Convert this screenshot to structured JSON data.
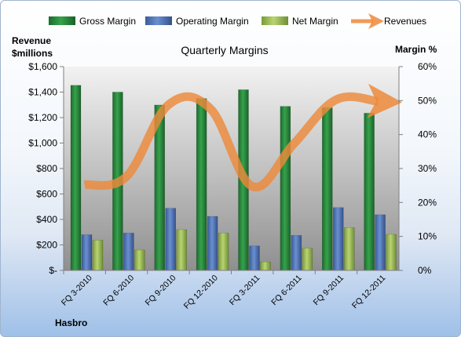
{
  "chart_data": {
    "type": "bar",
    "title": "Quarterly Margins",
    "ylabel_left": "Revenue $millions",
    "ylabel_left_lines": [
      "Revenue",
      "$millions"
    ],
    "ylabel_right": "Margin %",
    "footer": "Hasbro",
    "categories": [
      "FQ 3-2010",
      "FQ 6-2010",
      "FQ 9-2010",
      "FQ 12-2010",
      "FQ 3-2011",
      "FQ 6-2011",
      "FQ 9-2011",
      "FQ 12-2011"
    ],
    "y_left": {
      "min": 0,
      "max": 1600,
      "step": 200,
      "ticks": [
        "$-",
        "$200",
        "$400",
        "$600",
        "$800",
        "$1,000",
        "$1,200",
        "$1,400",
        "$1,600"
      ]
    },
    "y_right": {
      "min": 0,
      "max": 60,
      "step": 10,
      "ticks": [
        "0%",
        "10%",
        "20%",
        "30%",
        "40%",
        "50%",
        "60%"
      ]
    },
    "series": [
      {
        "name": "Gross Margin",
        "kind": "bar",
        "axis": "right",
        "color": "#2a8a3e",
        "values": [
          54.5,
          52.5,
          48.7,
          50.6,
          53.2,
          48.3,
          47.9,
          46.3
        ]
      },
      {
        "name": "Operating Margin",
        "kind": "bar",
        "axis": "right",
        "color": "#4a6fb0",
        "values": [
          10.5,
          11.0,
          18.3,
          15.9,
          7.2,
          10.3,
          18.5,
          16.4
        ]
      },
      {
        "name": "Net Margin",
        "kind": "bar",
        "axis": "right",
        "color": "#9cbb58",
        "values": [
          8.9,
          6.0,
          12.0,
          11.0,
          2.5,
          6.5,
          12.6,
          10.6
        ]
      },
      {
        "name": "Revenues",
        "kind": "line",
        "axis": "left",
        "color": "#ed8a3a",
        "values": [
          672,
          737,
          1300,
          1270,
          660,
          997,
          1340,
          1327
        ]
      }
    ],
    "legend_position": "top",
    "grid": false
  }
}
